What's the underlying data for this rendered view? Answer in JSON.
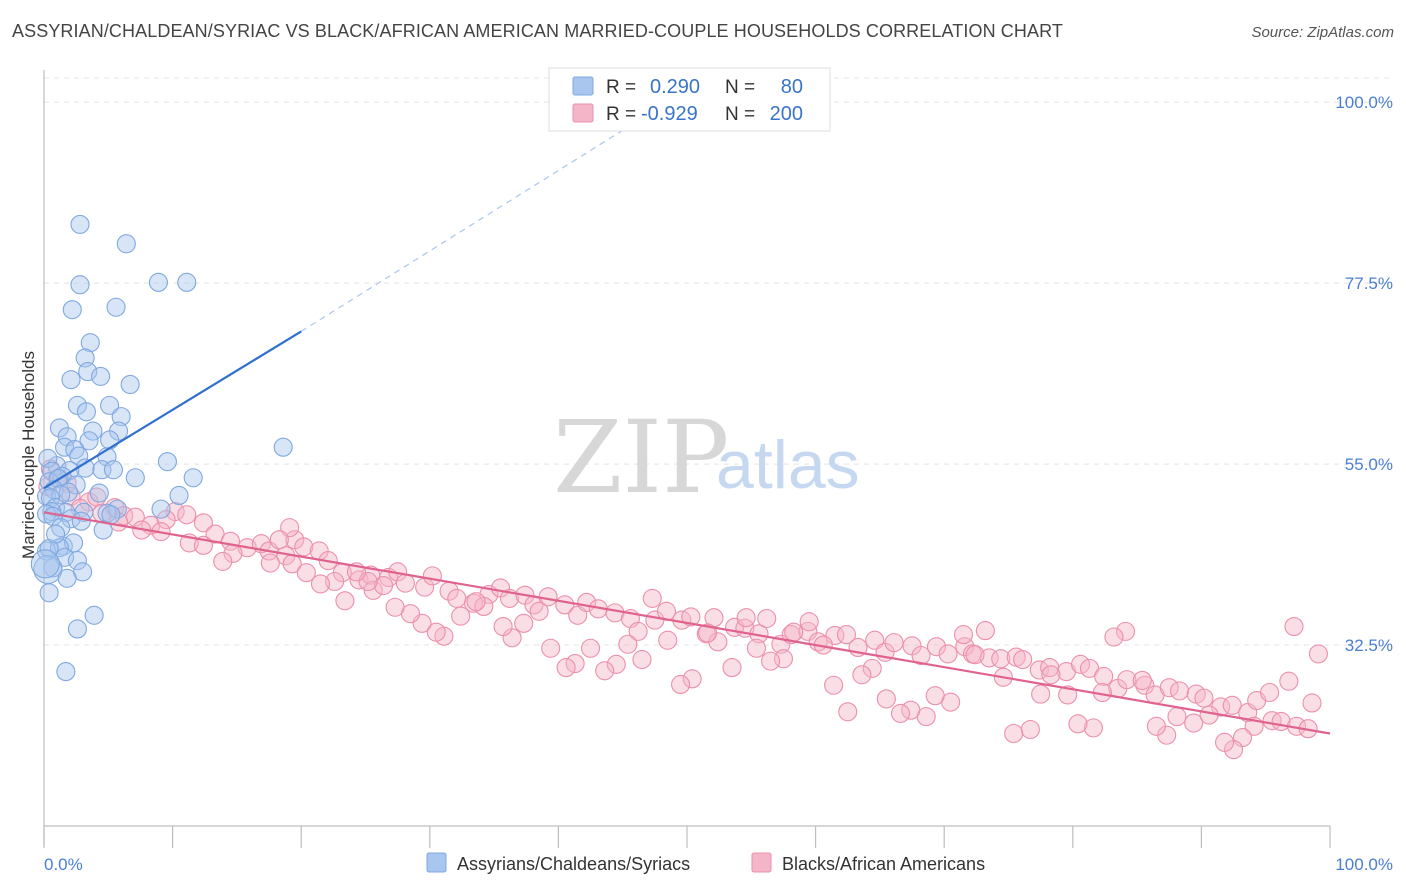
{
  "title": "ASSYRIAN/CHALDEAN/SYRIAC VS BLACK/AFRICAN AMERICAN MARRIED-COUPLE HOUSEHOLDS CORRELATION CHART",
  "source": "Source: ZipAtlas.com",
  "watermark": {
    "zip": "ZIP",
    "atlas": "atlas"
  },
  "legend": {
    "r_label": "R =",
    "n_label": "N =",
    "rows": [
      {
        "r": "0.290",
        "n": "80",
        "color": "#a9c6ee"
      },
      {
        "r": "-0.929",
        "n": "200",
        "color": "#f5b5c8"
      }
    ]
  },
  "bottom_legend": [
    {
      "label": "Assyrians/Chaldeans/Syriacs",
      "color": "#a9c6ee"
    },
    {
      "label": "Blacks/African Americans",
      "color": "#f5b5c8"
    }
  ],
  "chart_data": {
    "type": "scatter",
    "xlabel": "",
    "ylabel": "Married-couple Households",
    "xlim": [
      0,
      100
    ],
    "ylim": [
      10,
      104
    ],
    "x_tick_labels": [
      "0.0%",
      "100.0%"
    ],
    "y_ticks": [
      32.5,
      55.0,
      77.5,
      100.0
    ],
    "y_tick_labels": [
      "32.5%",
      "55.0%",
      "77.5%",
      "100.0%"
    ],
    "grid": true,
    "series": [
      {
        "name": "Assyrians/Chaldeans/Syriacs",
        "color": "#a9c6ee",
        "stroke": "#7fa8e0",
        "trend": {
          "x": [
            0,
            20
          ],
          "y": [
            52.0,
            71.5
          ],
          "extend_to": [
            47,
            98.5
          ],
          "color": "#2f6fce"
        },
        "points": [
          [
            2.8,
            84.8
          ],
          [
            6.4,
            82.4
          ],
          [
            2.8,
            77.3
          ],
          [
            8.9,
            77.6
          ],
          [
            11.1,
            77.6
          ],
          [
            2.2,
            74.2
          ],
          [
            5.6,
            74.5
          ],
          [
            3.6,
            70.1
          ],
          [
            3.2,
            68.2
          ],
          [
            3.4,
            66.5
          ],
          [
            4.4,
            65.9
          ],
          [
            2.1,
            65.5
          ],
          [
            6.7,
            64.9
          ],
          [
            2.6,
            62.3
          ],
          [
            5.1,
            62.3
          ],
          [
            3.3,
            61.5
          ],
          [
            6.0,
            60.9
          ],
          [
            1.2,
            59.5
          ],
          [
            3.8,
            59.1
          ],
          [
            5.8,
            59.1
          ],
          [
            1.8,
            58.4
          ],
          [
            3.5,
            57.9
          ],
          [
            5.1,
            58.0
          ],
          [
            18.6,
            57.1
          ],
          [
            1.6,
            57.1
          ],
          [
            2.4,
            56.8
          ],
          [
            4.9,
            55.9
          ],
          [
            2.7,
            56.0
          ],
          [
            9.6,
            55.3
          ],
          [
            1.0,
            54.8
          ],
          [
            0.3,
            55.7
          ],
          [
            3.2,
            54.5
          ],
          [
            2.0,
            54.2
          ],
          [
            4.5,
            54.3
          ],
          [
            5.4,
            54.3
          ],
          [
            0.6,
            54.1
          ],
          [
            1.4,
            53.5
          ],
          [
            0.4,
            52.8
          ],
          [
            1.1,
            53.2
          ],
          [
            7.1,
            53.3
          ],
          [
            11.6,
            53.3
          ],
          [
            2.5,
            52.4
          ],
          [
            0.8,
            51.8
          ],
          [
            1.9,
            51.5
          ],
          [
            0.2,
            51.0
          ],
          [
            1.3,
            51.2
          ],
          [
            0.5,
            50.8
          ],
          [
            10.5,
            51.1
          ],
          [
            4.3,
            51.4
          ],
          [
            0.9,
            49.6
          ],
          [
            1.7,
            49.0
          ],
          [
            5.7,
            49.4
          ],
          [
            0.6,
            49.1
          ],
          [
            9.1,
            49.4
          ],
          [
            3.1,
            49.0
          ],
          [
            0.2,
            48.8
          ],
          [
            4.9,
            48.9
          ],
          [
            5.2,
            48.7
          ],
          [
            2.1,
            48.2
          ],
          [
            0.7,
            48.5
          ],
          [
            2.9,
            47.9
          ],
          [
            1.3,
            47.1
          ],
          [
            4.6,
            46.8
          ],
          [
            0.2,
            44.2
          ],
          [
            1.5,
            44.8
          ],
          [
            2.3,
            45.2
          ],
          [
            1.2,
            44.6
          ],
          [
            0.4,
            44.5
          ],
          [
            1.6,
            43.4
          ],
          [
            2.6,
            43.0
          ],
          [
            3.0,
            41.6
          ],
          [
            0.7,
            42.1
          ],
          [
            0.3,
            41.9
          ],
          [
            1.8,
            40.8
          ],
          [
            0.1,
            42.6
          ],
          [
            3.9,
            36.2
          ],
          [
            2.6,
            34.5
          ],
          [
            1.7,
            29.2
          ],
          [
            0.4,
            39.0
          ],
          [
            0.9,
            46.3
          ]
        ]
      },
      {
        "name": "Blacks/African Americans",
        "color": "#f5b5c8",
        "stroke": "#ec8fab",
        "trend": {
          "x": [
            0,
            100
          ],
          "y": [
            49.0,
            21.5
          ],
          "color": "#e0638f"
        },
        "points": [
          [
            0.5,
            54.4
          ],
          [
            1.2,
            53.2
          ],
          [
            1.8,
            52.6
          ],
          [
            0.3,
            52.2
          ],
          [
            2.1,
            51.0
          ],
          [
            3.5,
            50.3
          ],
          [
            4.1,
            50.9
          ],
          [
            2.8,
            49.5
          ],
          [
            4.5,
            48.9
          ],
          [
            5.5,
            49.6
          ],
          [
            6.2,
            48.6
          ],
          [
            7.1,
            48.4
          ],
          [
            5.8,
            47.8
          ],
          [
            8.3,
            47.4
          ],
          [
            10.2,
            49.1
          ],
          [
            9.5,
            48.1
          ],
          [
            11.1,
            48.7
          ],
          [
            12.4,
            47.7
          ],
          [
            7.6,
            46.8
          ],
          [
            9.1,
            46.6
          ],
          [
            13.3,
            46.3
          ],
          [
            14.5,
            45.4
          ],
          [
            11.3,
            45.2
          ],
          [
            12.4,
            44.9
          ],
          [
            15.8,
            44.6
          ],
          [
            16.9,
            45.1
          ],
          [
            14.7,
            43.9
          ],
          [
            17.5,
            44.2
          ],
          [
            13.9,
            42.9
          ],
          [
            18.8,
            43.6
          ],
          [
            19.5,
            45.6
          ],
          [
            20.2,
            44.7
          ],
          [
            21.4,
            44.2
          ],
          [
            22.1,
            43.0
          ],
          [
            17.6,
            42.7
          ],
          [
            19.3,
            42.6
          ],
          [
            23.2,
            41.5
          ],
          [
            24.5,
            40.6
          ],
          [
            25.4,
            41.2
          ],
          [
            26.8,
            40.9
          ],
          [
            27.5,
            41.6
          ],
          [
            28.1,
            40.2
          ],
          [
            25.6,
            39.3
          ],
          [
            29.6,
            39.7
          ],
          [
            30.2,
            41.1
          ],
          [
            31.5,
            39.2
          ],
          [
            32.1,
            38.3
          ],
          [
            33.4,
            37.7
          ],
          [
            34.6,
            38.8
          ],
          [
            35.5,
            39.6
          ],
          [
            36.2,
            38.3
          ],
          [
            37.4,
            38.7
          ],
          [
            38.1,
            37.5
          ],
          [
            39.2,
            38.5
          ],
          [
            40.5,
            37.5
          ],
          [
            41.5,
            36.2
          ],
          [
            42.2,
            37.8
          ],
          [
            43.1,
            37.0
          ],
          [
            44.4,
            36.5
          ],
          [
            45.6,
            35.8
          ],
          [
            46.2,
            34.2
          ],
          [
            47.5,
            35.6
          ],
          [
            48.4,
            36.7
          ],
          [
            49.6,
            35.6
          ],
          [
            50.3,
            36.0
          ],
          [
            51.5,
            33.9
          ],
          [
            52.1,
            35.9
          ],
          [
            53.7,
            34.7
          ],
          [
            54.5,
            34.6
          ],
          [
            55.6,
            33.9
          ],
          [
            56.2,
            35.8
          ],
          [
            57.3,
            32.6
          ],
          [
            58.1,
            33.8
          ],
          [
            59.4,
            34.2
          ],
          [
            60.2,
            32.9
          ],
          [
            61.5,
            33.7
          ],
          [
            62.4,
            33.8
          ],
          [
            63.3,
            32.2
          ],
          [
            64.6,
            33.1
          ],
          [
            65.4,
            31.6
          ],
          [
            66.1,
            32.8
          ],
          [
            67.5,
            32.4
          ],
          [
            68.2,
            31.2
          ],
          [
            69.4,
            32.3
          ],
          [
            70.3,
            31.4
          ],
          [
            71.6,
            32.3
          ],
          [
            72.2,
            31.4
          ],
          [
            73.5,
            30.9
          ],
          [
            74.4,
            30.8
          ],
          [
            75.6,
            31.0
          ],
          [
            76.1,
            30.7
          ],
          [
            77.4,
            29.4
          ],
          [
            78.2,
            29.7
          ],
          [
            79.5,
            29.2
          ],
          [
            80.6,
            30.1
          ],
          [
            81.3,
            29.6
          ],
          [
            82.4,
            28.6
          ],
          [
            83.5,
            27.1
          ],
          [
            84.2,
            28.2
          ],
          [
            85.6,
            27.5
          ],
          [
            86.4,
            26.3
          ],
          [
            87.5,
            27.2
          ],
          [
            88.3,
            26.8
          ],
          [
            89.6,
            26.4
          ],
          [
            90.2,
            25.9
          ],
          [
            91.5,
            24.8
          ],
          [
            92.4,
            25.0
          ],
          [
            93.6,
            24.1
          ],
          [
            94.3,
            25.6
          ],
          [
            95.5,
            23.1
          ],
          [
            96.2,
            23.0
          ],
          [
            97.4,
            22.4
          ],
          [
            98.3,
            22.1
          ],
          [
            99.1,
            31.4
          ],
          [
            98.6,
            25.3
          ],
          [
            97.2,
            34.8
          ],
          [
            96.8,
            28.0
          ],
          [
            95.3,
            26.6
          ],
          [
            94.1,
            22.4
          ],
          [
            93.2,
            21.0
          ],
          [
            92.5,
            19.5
          ],
          [
            91.8,
            20.4
          ],
          [
            90.6,
            23.8
          ],
          [
            89.4,
            22.8
          ],
          [
            88.1,
            23.6
          ],
          [
            87.3,
            21.3
          ],
          [
            86.5,
            22.4
          ],
          [
            85.4,
            28.1
          ],
          [
            84.1,
            34.2
          ],
          [
            83.2,
            33.5
          ],
          [
            82.3,
            26.6
          ],
          [
            81.6,
            22.2
          ],
          [
            80.4,
            22.7
          ],
          [
            79.6,
            26.3
          ],
          [
            78.3,
            28.8
          ],
          [
            77.5,
            26.4
          ],
          [
            76.7,
            22.0
          ],
          [
            75.4,
            21.5
          ],
          [
            74.6,
            28.5
          ],
          [
            73.2,
            34.3
          ],
          [
            72.4,
            31.3
          ],
          [
            71.5,
            33.8
          ],
          [
            70.5,
            25.4
          ],
          [
            69.3,
            26.2
          ],
          [
            68.6,
            23.6
          ],
          [
            67.4,
            24.4
          ],
          [
            66.6,
            24.0
          ],
          [
            65.5,
            25.8
          ],
          [
            64.4,
            29.6
          ],
          [
            63.6,
            28.8
          ],
          [
            62.5,
            24.2
          ],
          [
            61.4,
            27.5
          ],
          [
            60.6,
            32.5
          ],
          [
            59.5,
            35.4
          ],
          [
            58.3,
            34.1
          ],
          [
            57.5,
            30.8
          ],
          [
            56.5,
            30.5
          ],
          [
            55.4,
            32.1
          ],
          [
            54.6,
            35.9
          ],
          [
            53.5,
            29.7
          ],
          [
            52.4,
            32.9
          ],
          [
            51.6,
            34.0
          ],
          [
            50.4,
            28.3
          ],
          [
            49.5,
            27.6
          ],
          [
            48.5,
            33.1
          ],
          [
            47.3,
            38.3
          ],
          [
            46.5,
            30.7
          ],
          [
            45.4,
            32.6
          ],
          [
            44.5,
            30.1
          ],
          [
            43.6,
            29.3
          ],
          [
            42.5,
            32.1
          ],
          [
            41.3,
            30.2
          ],
          [
            40.6,
            29.7
          ],
          [
            39.4,
            32.1
          ],
          [
            38.5,
            36.7
          ],
          [
            37.3,
            35.2
          ],
          [
            36.4,
            33.4
          ],
          [
            35.7,
            34.8
          ],
          [
            34.2,
            37.3
          ],
          [
            33.6,
            37.9
          ],
          [
            32.4,
            36.1
          ],
          [
            31.1,
            33.6
          ],
          [
            30.5,
            34.1
          ],
          [
            29.4,
            35.2
          ],
          [
            28.5,
            36.4
          ],
          [
            27.3,
            37.2
          ],
          [
            26.4,
            39.9
          ],
          [
            25.2,
            40.4
          ],
          [
            24.3,
            41.6
          ],
          [
            23.4,
            38.0
          ],
          [
            22.6,
            40.4
          ],
          [
            21.5,
            40.1
          ],
          [
            20.4,
            41.5
          ],
          [
            19.1,
            47.1
          ],
          [
            18.3,
            45.6
          ]
        ]
      }
    ]
  }
}
